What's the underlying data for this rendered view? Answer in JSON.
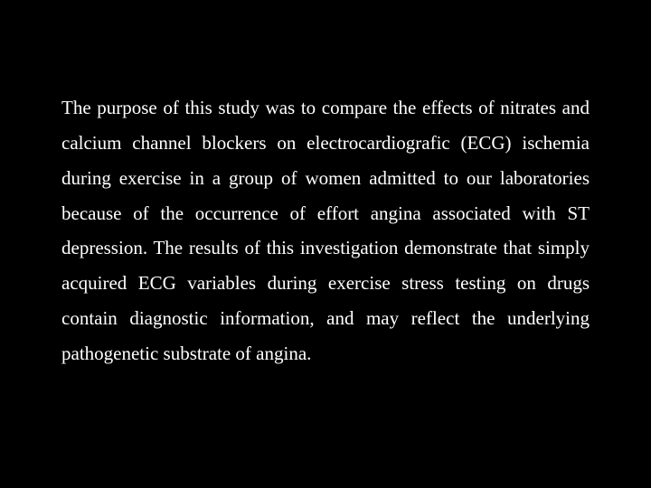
{
  "slide": {
    "background_color": "#000000",
    "text_color": "#ffffff",
    "font_family": "Times New Roman",
    "font_size_pt": 16,
    "text_align": "justify",
    "line_height": 1.85,
    "body": "The purpose of this study was to compare the effects of nitrates and calcium channel blockers on electrocardiografic (ECG) ischemia during exercise in a group of women admitted to our laboratories because of the occurrence of effort angina associated with ST depression. The results of this investigation demonstrate that simply acquired ECG variables during exercise stress testing on drugs contain diagnostic information, and may reflect the underlying pathogenetic substrate of angina."
  }
}
